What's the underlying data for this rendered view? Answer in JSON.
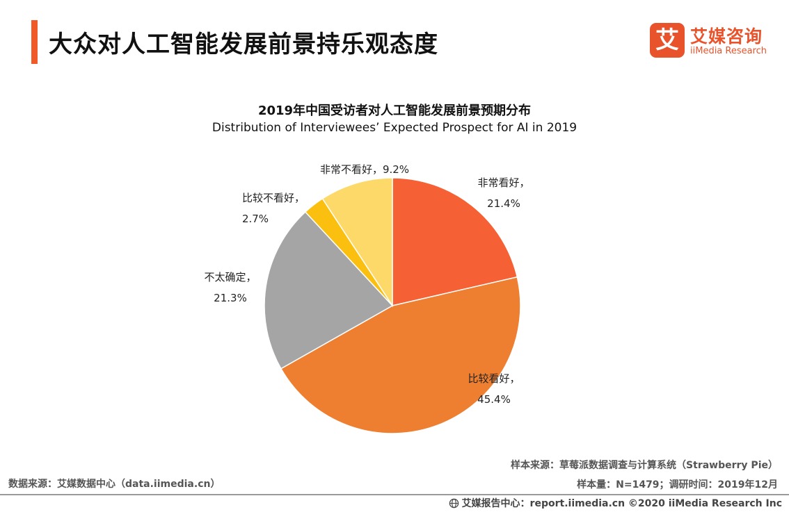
{
  "header": {
    "title": "大众对人工智能发展前景持乐观态度",
    "accent_color": "#f05a28"
  },
  "logo": {
    "mark": "艾",
    "name_cn": "艾媒咨询",
    "name_en": "iiMedia Research",
    "color": "#e8532b"
  },
  "chart_data": {
    "type": "pie",
    "title": "2019年中国受访者对人工智能发展前景预期分布",
    "subtitle": "Distribution of Interviewees’ Expected Prospect for AI in 2019",
    "slices": [
      {
        "label": "非常看好，",
        "value": 21.4,
        "value_text": "21.4%",
        "color": "#f56134"
      },
      {
        "label": "比较看好，",
        "value": 45.4,
        "value_text": "45.4%",
        "color": "#ee7f30"
      },
      {
        "label": "不太确定，",
        "value": 21.3,
        "value_text": "21.3%",
        "color": "#a5a5a5"
      },
      {
        "label": "比较不看好，",
        "value": 2.7,
        "value_text": "2.7%",
        "color": "#fbbf0f"
      },
      {
        "label": "非常不看好，",
        "value": 9.2,
        "value_text": "9.2%",
        "color": "#fdd96a"
      }
    ]
  },
  "footnotes": {
    "data_source": "数据来源：艾媒数据中心（data.iimedia.cn）",
    "sample_source": "样本来源：草莓派数据调查与计算系统（Strawberry  Pie）",
    "sample_info": "样本量：N=1479；调研时间：2019年12月",
    "footer": "艾媒报告中心：report.iimedia.cn  ©2020  iiMedia Research  Inc"
  }
}
